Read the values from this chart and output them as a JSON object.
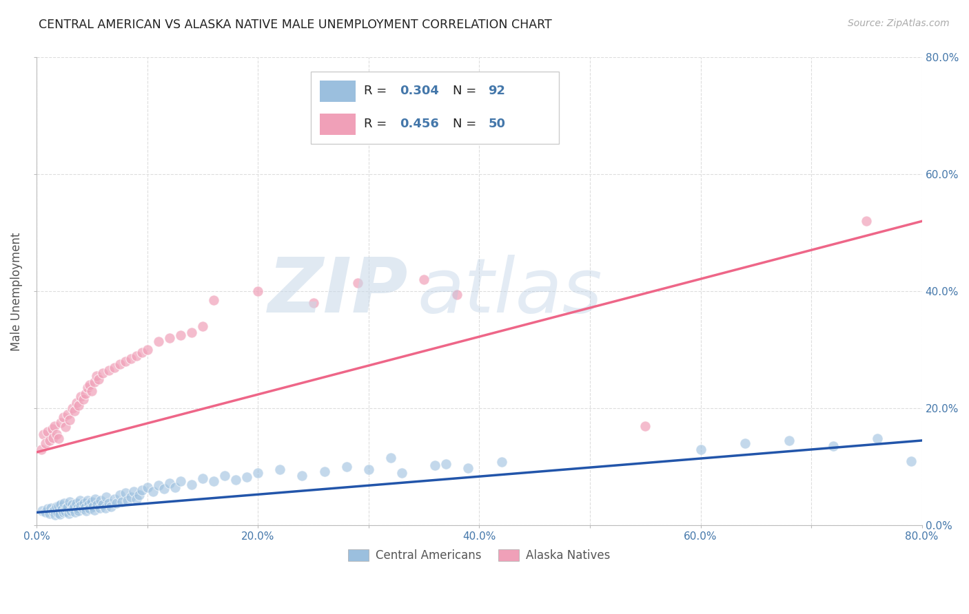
{
  "title": "CENTRAL AMERICAN VS ALASKA NATIVE MALE UNEMPLOYMENT CORRELATION CHART",
  "source": "Source: ZipAtlas.com",
  "ylabel": "Male Unemployment",
  "xlim": [
    0,
    0.8
  ],
  "ylim": [
    0,
    0.8
  ],
  "ytick_labels_right": [
    "0.0%",
    "20.0%",
    "40.0%",
    "60.0%",
    "80.0%"
  ],
  "xtick_labels": [
    "0.0%",
    "",
    "20.0%",
    "",
    "40.0%",
    "",
    "60.0%",
    "",
    "80.0%"
  ],
  "blue_color": "#9bbfde",
  "pink_color": "#f0a0b8",
  "blue_line_color": "#2255aa",
  "pink_line_color": "#ee6688",
  "title_color": "#222222",
  "source_color": "#aaaaaa",
  "axis_label_color": "#4477aa",
  "legend_text_color": "#4477aa",
  "blue_scatter_x": [
    0.005,
    0.008,
    0.01,
    0.012,
    0.013,
    0.015,
    0.016,
    0.017,
    0.018,
    0.019,
    0.02,
    0.021,
    0.022,
    0.023,
    0.024,
    0.025,
    0.026,
    0.027,
    0.028,
    0.029,
    0.03,
    0.031,
    0.032,
    0.033,
    0.034,
    0.035,
    0.036,
    0.037,
    0.038,
    0.039,
    0.04,
    0.042,
    0.043,
    0.044,
    0.045,
    0.046,
    0.047,
    0.048,
    0.05,
    0.051,
    0.052,
    0.053,
    0.055,
    0.057,
    0.058,
    0.06,
    0.062,
    0.063,
    0.065,
    0.067,
    0.07,
    0.072,
    0.075,
    0.077,
    0.08,
    0.082,
    0.085,
    0.088,
    0.09,
    0.093,
    0.095,
    0.1,
    0.105,
    0.11,
    0.115,
    0.12,
    0.125,
    0.13,
    0.14,
    0.15,
    0.16,
    0.17,
    0.18,
    0.19,
    0.2,
    0.22,
    0.24,
    0.26,
    0.28,
    0.3,
    0.33,
    0.36,
    0.39,
    0.42,
    0.32,
    0.37,
    0.6,
    0.64,
    0.68,
    0.72,
    0.76,
    0.79
  ],
  "blue_scatter_y": [
    0.025,
    0.022,
    0.028,
    0.02,
    0.03,
    0.024,
    0.026,
    0.018,
    0.032,
    0.021,
    0.033,
    0.019,
    0.035,
    0.027,
    0.022,
    0.038,
    0.024,
    0.029,
    0.031,
    0.02,
    0.04,
    0.025,
    0.035,
    0.028,
    0.032,
    0.022,
    0.038,
    0.03,
    0.025,
    0.042,
    0.033,
    0.028,
    0.038,
    0.031,
    0.025,
    0.042,
    0.035,
    0.028,
    0.04,
    0.032,
    0.026,
    0.045,
    0.035,
    0.029,
    0.042,
    0.036,
    0.03,
    0.048,
    0.038,
    0.032,
    0.045,
    0.038,
    0.052,
    0.04,
    0.055,
    0.042,
    0.048,
    0.058,
    0.045,
    0.052,
    0.06,
    0.065,
    0.058,
    0.068,
    0.062,
    0.072,
    0.065,
    0.075,
    0.07,
    0.08,
    0.075,
    0.085,
    0.078,
    0.082,
    0.09,
    0.095,
    0.085,
    0.092,
    0.1,
    0.095,
    0.09,
    0.102,
    0.098,
    0.108,
    0.115,
    0.105,
    0.13,
    0.14,
    0.145,
    0.135,
    0.148,
    0.11
  ],
  "pink_scatter_x": [
    0.004,
    0.006,
    0.008,
    0.01,
    0.012,
    0.014,
    0.015,
    0.016,
    0.018,
    0.02,
    0.022,
    0.024,
    0.026,
    0.028,
    0.03,
    0.032,
    0.034,
    0.036,
    0.038,
    0.04,
    0.042,
    0.044,
    0.046,
    0.048,
    0.05,
    0.052,
    0.054,
    0.056,
    0.06,
    0.065,
    0.07,
    0.075,
    0.08,
    0.085,
    0.09,
    0.095,
    0.1,
    0.11,
    0.12,
    0.13,
    0.14,
    0.15,
    0.16,
    0.2,
    0.25,
    0.29,
    0.35,
    0.38,
    0.55,
    0.75
  ],
  "pink_scatter_y": [
    0.13,
    0.155,
    0.14,
    0.16,
    0.145,
    0.165,
    0.15,
    0.17,
    0.155,
    0.148,
    0.175,
    0.185,
    0.168,
    0.19,
    0.18,
    0.2,
    0.195,
    0.21,
    0.205,
    0.22,
    0.215,
    0.225,
    0.235,
    0.24,
    0.23,
    0.245,
    0.255,
    0.25,
    0.26,
    0.265,
    0.27,
    0.275,
    0.28,
    0.285,
    0.29,
    0.295,
    0.3,
    0.315,
    0.32,
    0.325,
    0.33,
    0.34,
    0.385,
    0.4,
    0.38,
    0.415,
    0.42,
    0.395,
    0.17,
    0.52
  ],
  "blue_trend_x": [
    0.0,
    0.8
  ],
  "blue_trend_y": [
    0.022,
    0.145
  ],
  "pink_trend_x": [
    0.0,
    0.8
  ],
  "pink_trend_y": [
    0.125,
    0.52
  ],
  "background_color": "#ffffff",
  "grid_color": "#dddddd"
}
